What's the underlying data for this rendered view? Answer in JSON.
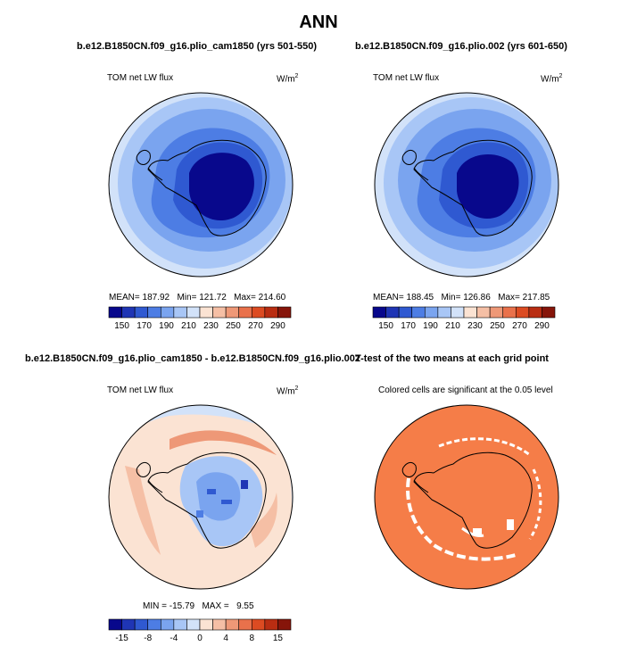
{
  "figure": {
    "title": "ANN"
  },
  "panels": {
    "top_left": {
      "title": "b.e12.B1850CN.f09_g16.plio_cam1850 (yrs 501-550)",
      "variable": "TOM net LW flux",
      "units_base": "W/m",
      "units_exp": "2",
      "stats": {
        "mean_label": "MEAN=",
        "mean": "187.92",
        "min_label": "Min=",
        "min": "121.72",
        "max_label": "Max=",
        "max": "214.60"
      }
    },
    "top_right": {
      "title": "b.e12.B1850CN.f09_g16.plio.002 (yrs 601-650)",
      "variable": "TOM net LW flux",
      "units_base": "W/m",
      "units_exp": "2",
      "stats": {
        "mean_label": "MEAN=",
        "mean": "188.45",
        "min_label": "Min=",
        "min": "126.86",
        "max_label": "Max=",
        "max": "217.85"
      }
    },
    "bottom_left": {
      "title": "b.e12.B1850CN.f09_g16.plio_cam1850 - b.e12.B1850CN.f09_g16.plio.002",
      "variable": "TOM net LW flux",
      "units_base": "W/m",
      "units_exp": "2",
      "stats": {
        "min_label": "MIN =",
        "min": "-15.79",
        "max_label": "MAX =",
        "max": "9.55"
      }
    },
    "bottom_right": {
      "title": "T-test of the two means at each grid point",
      "subtitle": "Colored cells are significant at the 0.05 level"
    }
  },
  "colorbars": {
    "absolute": {
      "colors": [
        "#08088c",
        "#1f35b5",
        "#2f59d1",
        "#4d7de4",
        "#7aa4ef",
        "#a8c6f6",
        "#d2e2f9",
        "#fbe3d3",
        "#f5bfa5",
        "#ee9877",
        "#e9714b",
        "#dc4b22",
        "#b92d12",
        "#86150a"
      ],
      "labels": [
        "150",
        "170",
        "190",
        "210",
        "230",
        "250",
        "270",
        "290"
      ]
    },
    "difference": {
      "colors": [
        "#08088c",
        "#1f35b5",
        "#2f59d1",
        "#4d7de4",
        "#7aa4ef",
        "#a8c6f6",
        "#d2e2f9",
        "#fbe3d3",
        "#f5bfa5",
        "#ee9877",
        "#e9714b",
        "#dc4b22",
        "#b92d12",
        "#86150a"
      ],
      "labels": [
        "-15",
        "-8",
        "-4",
        "0",
        "4",
        "8",
        "15"
      ]
    }
  },
  "colors": {
    "coast": "#000000",
    "significant": "#f57d48"
  }
}
